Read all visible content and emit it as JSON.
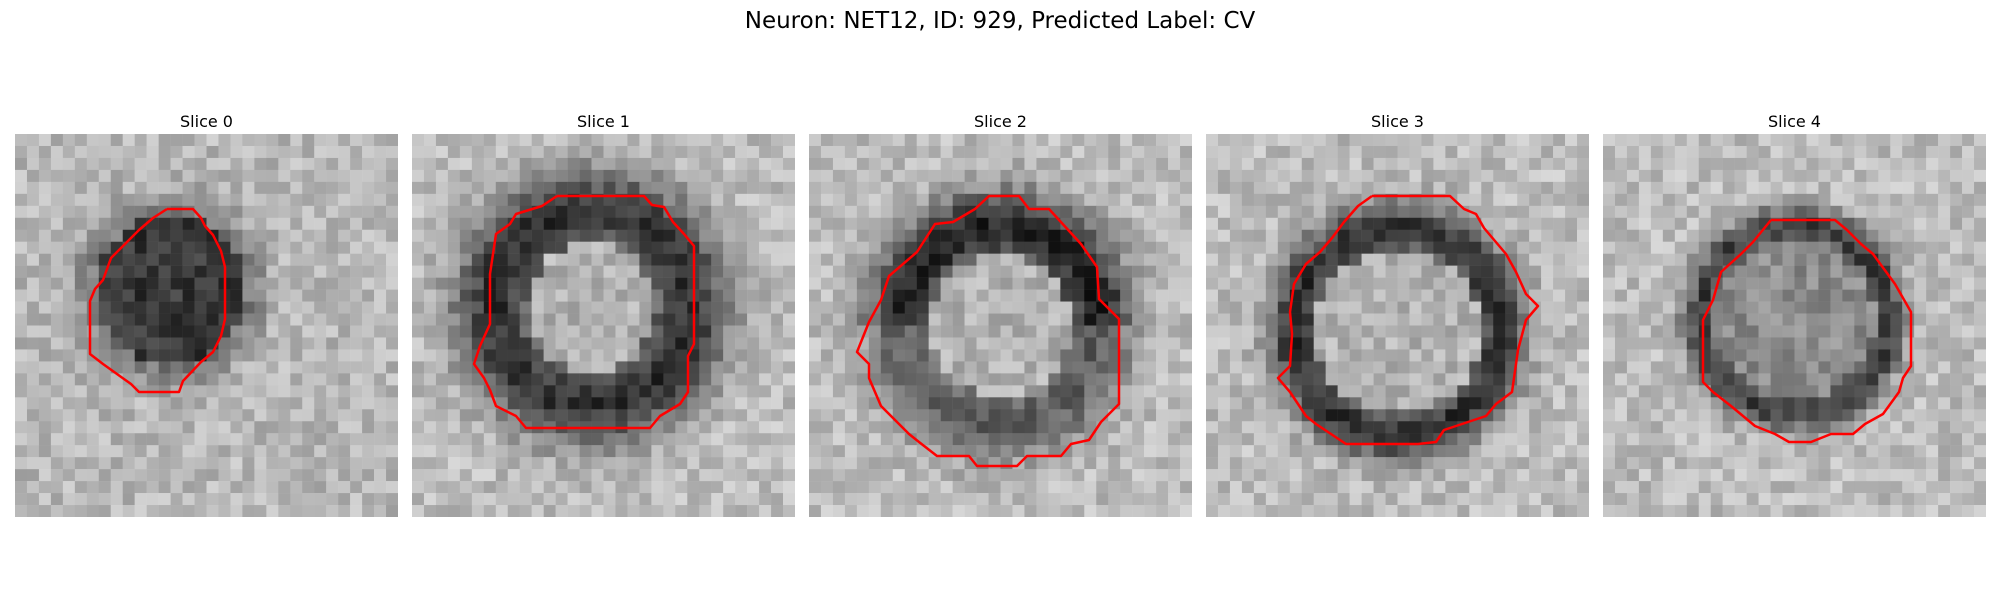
{
  "figure": {
    "title": "Neuron: NET12, ID: 929, Predicted Label: CV",
    "contour_color": "#ff0000",
    "colormap": "grayscale",
    "grid_size": 32,
    "panels": [
      {
        "label": "Slice 0",
        "pattern": "dark-filled-blob"
      },
      {
        "label": "Slice 1",
        "pattern": "dark-ring-bright-center"
      },
      {
        "label": "Slice 2",
        "pattern": "bright-center-dark-upper-rim"
      },
      {
        "label": "Slice 3",
        "pattern": "bright-center-dark-ring"
      },
      {
        "label": "Slice 4",
        "pattern": "thin-dark-ring-gray-center"
      }
    ]
  }
}
